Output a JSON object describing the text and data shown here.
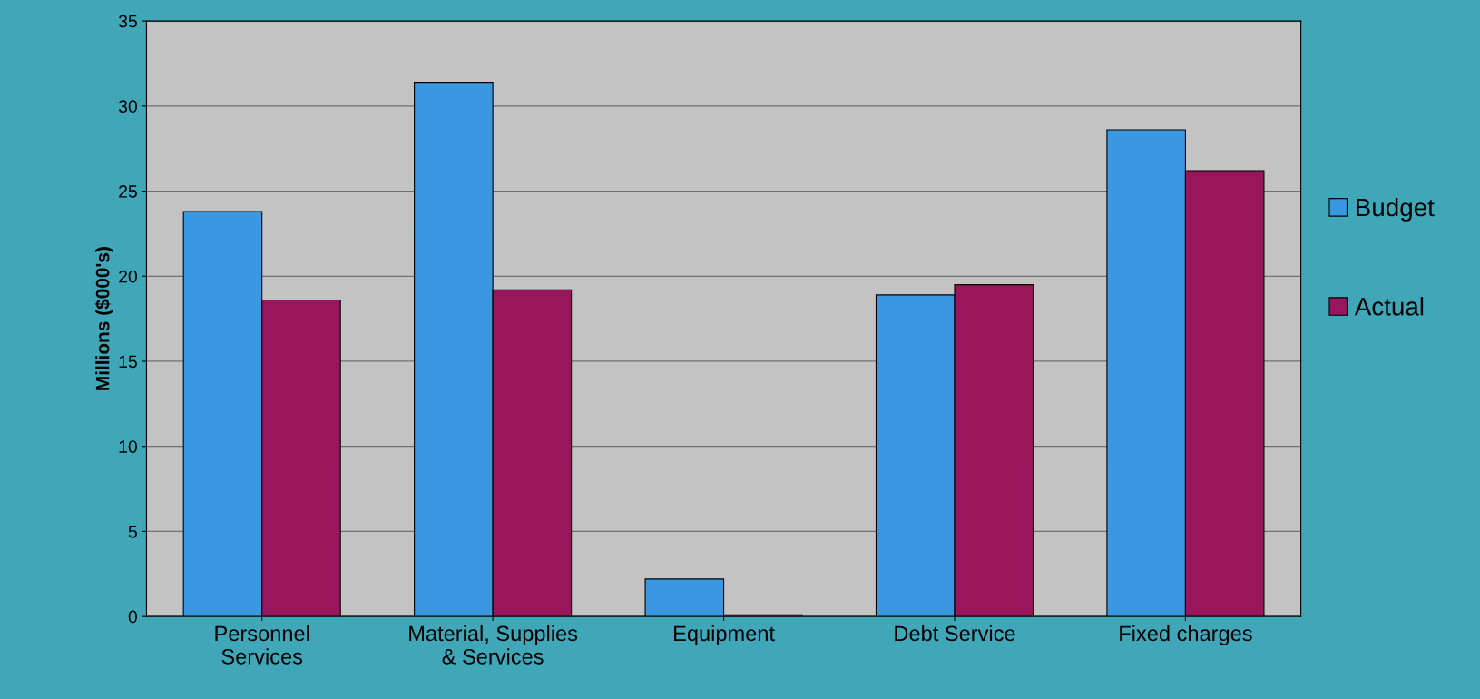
{
  "chart_data": {
    "type": "bar",
    "ylabel": "Millions ($000's)",
    "categories": [
      "Personnel\nServices",
      "Material, Supplies\n& Services",
      "Equipment",
      "Debt Service",
      "Fixed charges"
    ],
    "series": [
      {
        "name": "Budget",
        "color": "#3a98e0",
        "values": [
          23.8,
          31.4,
          2.2,
          18.9,
          28.6
        ]
      },
      {
        "name": "Actual",
        "color": "#98165c",
        "values": [
          18.6,
          19.2,
          0.1,
          19.5,
          26.2
        ]
      }
    ],
    "ylim": [
      0,
      35
    ],
    "yticks": [
      0,
      5,
      10,
      15,
      20,
      25,
      30,
      35
    ],
    "grid": "y",
    "legend": "right"
  }
}
